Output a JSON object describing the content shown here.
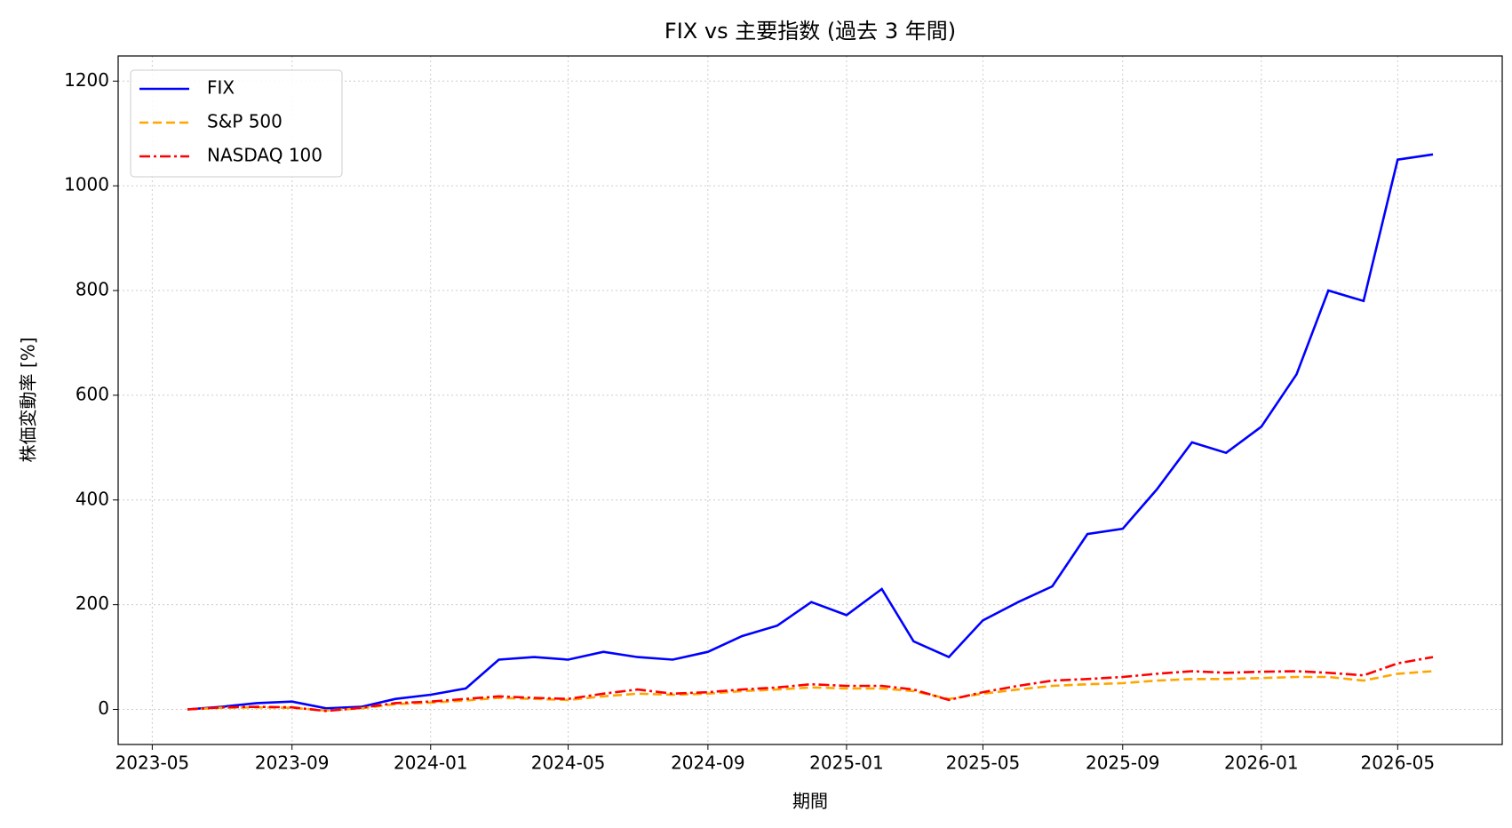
{
  "chart_data": {
    "type": "line",
    "title": "FIX vs 主要指数 (過去 3 年間)",
    "x_label": "期間",
    "y_label": "株価変動率 [%]",
    "x": [
      "2023-06",
      "2023-07",
      "2023-08",
      "2023-09",
      "2023-10",
      "2023-11",
      "2023-12",
      "2024-01",
      "2024-02",
      "2024-03",
      "2024-04",
      "2024-05",
      "2024-06",
      "2024-07",
      "2024-08",
      "2024-09",
      "2024-10",
      "2024-11",
      "2024-12",
      "2025-01",
      "2025-02",
      "2025-03",
      "2025-04",
      "2025-05",
      "2025-06",
      "2025-07",
      "2025-08",
      "2025-09",
      "2025-10",
      "2025-11",
      "2025-12",
      "2026-01",
      "2026-02",
      "2026-03",
      "2026-04",
      "2026-05",
      "2026-06"
    ],
    "series": [
      {
        "name": "FIX",
        "color": "#0000ff",
        "dash": "solid",
        "values": [
          0,
          5,
          12,
          15,
          2,
          5,
          20,
          28,
          40,
          95,
          100,
          95,
          110,
          100,
          95,
          110,
          140,
          160,
          205,
          180,
          230,
          130,
          100,
          170,
          205,
          235,
          335,
          345,
          420,
          510,
          490,
          540,
          640,
          800,
          780,
          1050,
          1060
        ]
      },
      {
        "name": "S&P 500",
        "color": "#ffa500",
        "dash": "dashed",
        "values": [
          0,
          3,
          4,
          3,
          -2,
          2,
          10,
          13,
          17,
          22,
          20,
          18,
          25,
          30,
          28,
          30,
          35,
          38,
          42,
          40,
          40,
          35,
          20,
          30,
          38,
          45,
          48,
          50,
          55,
          58,
          58,
          60,
          62,
          62,
          55,
          68,
          73
        ]
      },
      {
        "name": "NASDAQ 100",
        "color": "#ff0000",
        "dash": "dashdot",
        "values": [
          0,
          4,
          5,
          4,
          -3,
          3,
          12,
          15,
          20,
          25,
          22,
          20,
          30,
          38,
          30,
          33,
          38,
          42,
          48,
          45,
          45,
          38,
          18,
          33,
          45,
          55,
          58,
          62,
          68,
          73,
          70,
          72,
          73,
          70,
          65,
          88,
          100
        ]
      }
    ],
    "xlim": [
      "2023-04",
      "2026-08"
    ],
    "xticks": [
      "2023-05",
      "2023-09",
      "2024-01",
      "2024-05",
      "2024-09",
      "2025-01",
      "2025-05",
      "2025-09",
      "2026-01",
      "2026-05"
    ],
    "ylim": [
      -67,
      1248
    ],
    "yticks": [
      0,
      200,
      400,
      600,
      800,
      1000,
      1200
    ],
    "grid": true,
    "legend": "upper-left"
  }
}
